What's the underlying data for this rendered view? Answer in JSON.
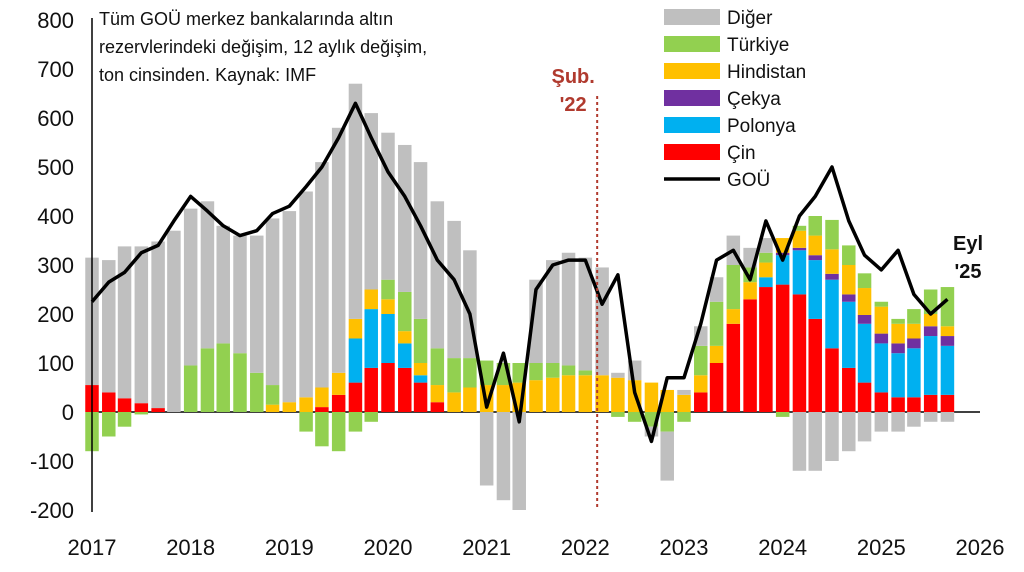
{
  "chart_data": {
    "type": "bar",
    "title_lines": [
      "Tüm GOÜ merkez bankalarında altın",
      "rezervlerindeki değişim, 12 aylık değişim,",
      "ton cinsinden. Kaynak: IMF"
    ],
    "ylim": [
      -200,
      800
    ],
    "y_ticks": [
      "800",
      "700",
      "600",
      "500",
      "400",
      "300",
      "200",
      "100",
      "0",
      "-100",
      "-200"
    ],
    "x_ticks": [
      "2017",
      "2018",
      "2019",
      "2020",
      "2021",
      "2022",
      "2023",
      "2024",
      "2025",
      "2026"
    ],
    "x_range": [
      2017,
      2026
    ],
    "legend": [
      {
        "name": "Diğer",
        "color": "#bfbfbf"
      },
      {
        "name": "Türkiye",
        "color": "#92d050"
      },
      {
        "name": "Hindistan",
        "color": "#ffc000"
      },
      {
        "name": "Çekya",
        "color": "#7030a0"
      },
      {
        "name": "Polonya",
        "color": "#00b0f0"
      },
      {
        "name": "Çin",
        "color": "#ff0000"
      },
      {
        "name": "GOÜ",
        "color": "#000000"
      }
    ],
    "annotations": [
      {
        "text_lines": [
          "Şub.",
          "'22"
        ],
        "x": 2022.12
      },
      {
        "text_lines": [
          "Eyl",
          "'25"
        ],
        "x": 2025.67
      }
    ],
    "x": [
      2017.0,
      2017.17,
      2017.33,
      2017.5,
      2017.67,
      2017.83,
      2018.0,
      2018.17,
      2018.33,
      2018.5,
      2018.67,
      2018.83,
      2019.0,
      2019.17,
      2019.33,
      2019.5,
      2019.67,
      2019.83,
      2020.0,
      2020.17,
      2020.33,
      2020.5,
      2020.67,
      2020.83,
      2021.0,
      2021.17,
      2021.33,
      2021.5,
      2021.67,
      2021.83,
      2022.0,
      2022.17,
      2022.33,
      2022.5,
      2022.67,
      2022.83,
      2023.0,
      2023.17,
      2023.33,
      2023.5,
      2023.67,
      2023.83,
      2024.0,
      2024.17,
      2024.33,
      2024.5,
      2024.67,
      2024.83,
      2025.0,
      2025.17,
      2025.33,
      2025.5,
      2025.67
    ],
    "series": [
      {
        "name": "Çin",
        "values": [
          55,
          40,
          28,
          18,
          8,
          0,
          0,
          0,
          0,
          0,
          0,
          0,
          0,
          0,
          10,
          35,
          60,
          90,
          100,
          90,
          60,
          20,
          0,
          0,
          0,
          0,
          0,
          0,
          0,
          0,
          0,
          0,
          0,
          0,
          0,
          0,
          0,
          40,
          100,
          180,
          230,
          255,
          260,
          240,
          190,
          130,
          90,
          60,
          40,
          30,
          30,
          35,
          35
        ]
      },
      {
        "name": "Polonya",
        "values": [
          0,
          0,
          0,
          0,
          0,
          0,
          0,
          0,
          0,
          0,
          0,
          0,
          0,
          0,
          0,
          0,
          90,
          120,
          100,
          50,
          15,
          0,
          0,
          0,
          0,
          0,
          0,
          0,
          0,
          0,
          0,
          0,
          0,
          0,
          0,
          0,
          0,
          0,
          0,
          0,
          0,
          20,
          60,
          90,
          120,
          140,
          135,
          120,
          100,
          90,
          100,
          120,
          100
        ]
      },
      {
        "name": "Çekya",
        "values": [
          0,
          0,
          0,
          0,
          0,
          0,
          0,
          0,
          0,
          0,
          0,
          0,
          0,
          0,
          0,
          0,
          0,
          0,
          0,
          0,
          0,
          0,
          0,
          0,
          0,
          0,
          0,
          0,
          0,
          0,
          0,
          0,
          0,
          0,
          0,
          0,
          0,
          0,
          0,
          0,
          0,
          0,
          5,
          5,
          10,
          12,
          15,
          18,
          20,
          20,
          20,
          20,
          20
        ]
      },
      {
        "name": "Hindistan",
        "values": [
          0,
          0,
          0,
          0,
          0,
          0,
          0,
          0,
          0,
          0,
          0,
          15,
          20,
          30,
          40,
          45,
          40,
          40,
          30,
          25,
          25,
          35,
          40,
          50,
          55,
          55,
          60,
          65,
          70,
          75,
          75,
          75,
          70,
          65,
          60,
          45,
          35,
          35,
          35,
          30,
          35,
          30,
          30,
          35,
          40,
          50,
          60,
          55,
          55,
          40,
          30,
          25,
          20
        ]
      },
      {
        "name": "Türkiye",
        "values": [
          -80,
          -50,
          -30,
          -5,
          0,
          0,
          95,
          130,
          140,
          120,
          80,
          40,
          0,
          -40,
          -70,
          -80,
          -40,
          -20,
          40,
          80,
          90,
          75,
          70,
          60,
          50,
          45,
          40,
          35,
          30,
          20,
          10,
          0,
          -10,
          -20,
          -30,
          -40,
          -20,
          60,
          90,
          90,
          30,
          20,
          -10,
          10,
          40,
          60,
          40,
          30,
          10,
          10,
          30,
          50,
          80
        ]
      },
      {
        "name": "Diğer",
        "values": [
          260,
          270,
          310,
          320,
          340,
          370,
          320,
          300,
          240,
          240,
          280,
          340,
          390,
          420,
          460,
          500,
          480,
          360,
          300,
          300,
          320,
          300,
          280,
          220,
          -150,
          -180,
          -200,
          170,
          210,
          230,
          230,
          220,
          10,
          40,
          -20,
          -100,
          10,
          40,
          50,
          60,
          40,
          30,
          0,
          -120,
          -120,
          -100,
          -80,
          -60,
          -40,
          -40,
          -30,
          -20,
          -20
        ]
      },
      {
        "name": "GOÜ",
        "type": "line",
        "values": [
          225,
          265,
          285,
          325,
          340,
          390,
          440,
          410,
          380,
          360,
          370,
          405,
          420,
          460,
          500,
          560,
          630,
          560,
          490,
          440,
          380,
          310,
          270,
          200,
          10,
          120,
          -20,
          250,
          300,
          310,
          310,
          220,
          280,
          40,
          -60,
          70,
          70,
          180,
          310,
          330,
          270,
          390,
          310,
          400,
          440,
          500,
          390,
          320,
          290,
          330,
          240,
          200,
          230
        ]
      }
    ]
  }
}
